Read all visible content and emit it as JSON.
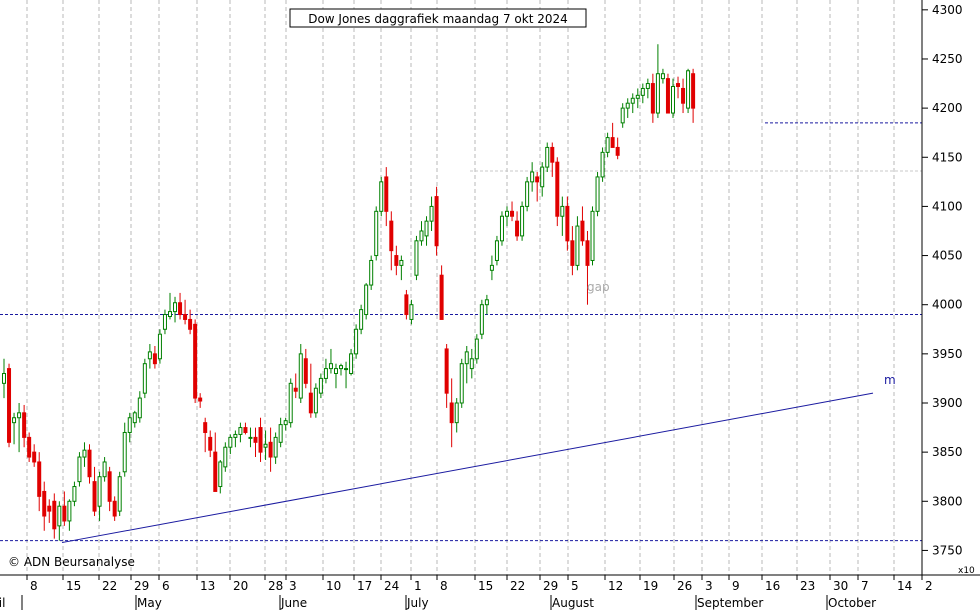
{
  "chart_data": {
    "type": "candlestick",
    "title": "Dow Jones daggrafiek maandag 7 okt 2024",
    "copyright": "© ADN Beursanalyse",
    "scale_note": "x10",
    "ylim": [
      3725,
      4310
    ],
    "y_ticks": [
      3750,
      3800,
      3850,
      3900,
      3950,
      4000,
      4050,
      4100,
      4150,
      4200,
      4250,
      4300
    ],
    "date_ticks": [
      "8",
      "15",
      "22",
      "29",
      "6",
      "13",
      "20",
      "28",
      "3",
      "10",
      "17",
      "24",
      "1",
      "8",
      "15",
      "22",
      "29",
      "5",
      "12",
      "19",
      "26",
      "3",
      "9",
      "16",
      "23",
      "30",
      "7",
      "14",
      "2"
    ],
    "month_labels": [
      "April",
      "May",
      "June",
      "July",
      "August",
      "September",
      "October"
    ],
    "horizontal_levels": [
      3990,
      3760,
      4185,
      4136
    ],
    "trendline_label": "m",
    "gap_label": "gap",
    "colors": {
      "up": "#008000",
      "down": "#e00000",
      "trend": "#1a1aa0",
      "level": "#1a1aa0",
      "grid": "#b8b8b8"
    },
    "ohlc": [
      [
        3920,
        3945,
        3905,
        3930
      ],
      [
        3935,
        3940,
        3855,
        3860
      ],
      [
        3880,
        3890,
        3858,
        3885
      ],
      [
        3885,
        3900,
        3850,
        3890
      ],
      [
        3890,
        3898,
        3855,
        3865
      ],
      [
        3865,
        3870,
        3840,
        3845
      ],
      [
        3850,
        3858,
        3835,
        3840
      ],
      [
        3840,
        3850,
        3790,
        3805
      ],
      [
        3810,
        3820,
        3770,
        3785
      ],
      [
        3795,
        3802,
        3778,
        3790
      ],
      [
        3800,
        3808,
        3762,
        3772
      ],
      [
        3775,
        3800,
        3760,
        3795
      ],
      [
        3795,
        3810,
        3775,
        3780
      ],
      [
        3780,
        3802,
        3770,
        3800
      ],
      [
        3800,
        3820,
        3795,
        3815
      ],
      [
        3820,
        3850,
        3815,
        3845
      ],
      [
        3845,
        3860,
        3835,
        3852
      ],
      [
        3852,
        3858,
        3818,
        3825
      ],
      [
        3820,
        3835,
        3785,
        3790
      ],
      [
        3795,
        3830,
        3780,
        3825
      ],
      [
        3825,
        3845,
        3820,
        3840
      ],
      [
        3830,
        3835,
        3790,
        3800
      ],
      [
        3800,
        3805,
        3780,
        3785
      ],
      [
        3790,
        3830,
        3785,
        3825
      ],
      [
        3830,
        3880,
        3825,
        3870
      ],
      [
        3870,
        3890,
        3860,
        3885
      ],
      [
        3880,
        3892,
        3875,
        3890
      ],
      [
        3885,
        3912,
        3880,
        3905
      ],
      [
        3910,
        3945,
        3905,
        3940
      ],
      [
        3945,
        3960,
        3935,
        3952
      ],
      [
        3950,
        3958,
        3935,
        3940
      ],
      [
        3945,
        3975,
        3940,
        3970
      ],
      [
        3975,
        3995,
        3970,
        3990
      ],
      [
        3988,
        4012,
        3985,
        3993
      ],
      [
        3993,
        4008,
        3982,
        4002
      ],
      [
        4002,
        4012,
        3985,
        3990
      ],
      [
        3990,
        4005,
        3980,
        3985
      ],
      [
        3985,
        3995,
        3970,
        3975
      ],
      [
        3980,
        3985,
        3900,
        3905
      ],
      [
        3905,
        3910,
        3895,
        3902
      ],
      [
        3880,
        3885,
        3850,
        3870
      ],
      [
        3865,
        3872,
        3845,
        3852
      ],
      [
        3850,
        3870,
        3810,
        3810
      ],
      [
        3815,
        3842,
        3808,
        3840
      ],
      [
        3835,
        3860,
        3830,
        3855
      ],
      [
        3855,
        3868,
        3848,
        3865
      ],
      [
        3865,
        3872,
        3855,
        3868
      ],
      [
        3868,
        3880,
        3860,
        3875
      ],
      [
        3875,
        3880,
        3868,
        3870
      ],
      [
        3865,
        3875,
        3855,
        3865
      ],
      [
        3865,
        3875,
        3845,
        3860
      ],
      [
        3875,
        3885,
        3840,
        3850
      ],
      [
        3855,
        3872,
        3842,
        3858
      ],
      [
        3860,
        3875,
        3830,
        3845
      ],
      [
        3845,
        3870,
        3838,
        3865
      ],
      [
        3860,
        3885,
        3855,
        3878
      ],
      [
        3878,
        3885,
        3872,
        3882
      ],
      [
        3880,
        3925,
        3875,
        3920
      ],
      [
        3915,
        3930,
        3905,
        3912
      ],
      [
        3905,
        3960,
        3900,
        3950
      ],
      [
        3945,
        3955,
        3915,
        3920
      ],
      [
        3910,
        3940,
        3885,
        3890
      ],
      [
        3890,
        3920,
        3885,
        3915
      ],
      [
        3910,
        3930,
        3905,
        3925
      ],
      [
        3925,
        3945,
        3920,
        3935
      ],
      [
        3935,
        3955,
        3930,
        3940
      ],
      [
        3930,
        3940,
        3915,
        3935
      ],
      [
        3935,
        3940,
        3928,
        3938
      ],
      [
        3935,
        3942,
        3915,
        3935
      ],
      [
        3930,
        3955,
        3928,
        3950
      ],
      [
        3950,
        3980,
        3945,
        3975
      ],
      [
        3975,
        4000,
        3970,
        3995
      ],
      [
        3990,
        4022,
        3985,
        4020
      ],
      [
        4020,
        4050,
        4015,
        4045
      ],
      [
        4050,
        4100,
        4045,
        4095
      ],
      [
        4095,
        4130,
        4090,
        4125
      ],
      [
        4130,
        4140,
        4080,
        4095
      ],
      [
        4085,
        4095,
        4035,
        4055
      ],
      [
        4050,
        4060,
        4030,
        4040
      ],
      [
        4040,
        4050,
        4025,
        4045
      ],
      [
        4010,
        4015,
        3985,
        3990
      ],
      [
        3985,
        4005,
        3980,
        4000
      ],
      [
        4030,
        4070,
        4025,
        4065
      ],
      [
        4065,
        4085,
        4060,
        4075
      ],
      [
        4070,
        4090,
        4060,
        4085
      ],
      [
        4085,
        4110,
        4075,
        4100
      ],
      [
        4110,
        4120,
        4050,
        4060
      ],
      [
        4030,
        4040,
        3985,
        3985
      ],
      [
        3955,
        3960,
        3895,
        3910
      ],
      [
        3900,
        3925,
        3855,
        3880
      ],
      [
        3880,
        3905,
        3870,
        3900
      ],
      [
        3900,
        3945,
        3895,
        3940
      ],
      [
        3940,
        3958,
        3920,
        3952
      ],
      [
        3935,
        3955,
        3925,
        3945
      ],
      [
        3945,
        3970,
        3940,
        3965
      ],
      [
        3970,
        4005,
        3965,
        4000
      ],
      [
        4000,
        4010,
        3990,
        4005
      ],
      [
        4035,
        4050,
        4025,
        4040
      ],
      [
        4045,
        4070,
        4040,
        4065
      ],
      [
        4065,
        4095,
        4060,
        4090
      ],
      [
        4090,
        4100,
        4080,
        4095
      ],
      [
        4095,
        4105,
        4085,
        4090
      ],
      [
        4085,
        4095,
        4065,
        4070
      ],
      [
        4070,
        4105,
        4065,
        4100
      ],
      [
        4100,
        4130,
        4095,
        4125
      ],
      [
        4125,
        4145,
        4115,
        4135
      ],
      [
        4130,
        4135,
        4105,
        4125
      ],
      [
        4120,
        4145,
        4110,
        4140
      ],
      [
        4140,
        4165,
        4135,
        4160
      ],
      [
        4160,
        4165,
        4130,
        4145
      ],
      [
        4145,
        4150,
        4080,
        4090
      ],
      [
        4090,
        4110,
        4070,
        4100
      ],
      [
        4100,
        4110,
        4055,
        4065
      ],
      [
        4065,
        4080,
        4030,
        4040
      ],
      [
        4040,
        4090,
        4035,
        4080
      ],
      [
        4085,
        4100,
        4060,
        4065
      ],
      [
        4065,
        4075,
        4000,
        4040
      ],
      [
        4045,
        4100,
        4040,
        4095
      ],
      [
        4095,
        4135,
        4090,
        4130
      ],
      [
        4130,
        4160,
        4125,
        4155
      ],
      [
        4155,
        4175,
        4150,
        4170
      ],
      [
        4170,
        4185,
        4160,
        4160
      ],
      [
        4160,
        4170,
        4148,
        4152
      ],
      [
        4185,
        4205,
        4180,
        4200
      ],
      [
        4200,
        4210,
        4190,
        4205
      ],
      [
        4205,
        4215,
        4195,
        4210
      ],
      [
        4210,
        4220,
        4200,
        4213
      ],
      [
        4213,
        4225,
        4205,
        4220
      ],
      [
        4220,
        4230,
        4210,
        4225
      ],
      [
        4225,
        4235,
        4185,
        4195
      ],
      [
        4195,
        4265,
        4190,
        4235
      ],
      [
        4230,
        4240,
        4225,
        4235
      ],
      [
        4230,
        4235,
        4195,
        4195
      ],
      [
        4195,
        4230,
        4190,
        4222
      ],
      [
        4225,
        4232,
        4210,
        4222
      ],
      [
        4220,
        4230,
        4195,
        4205
      ],
      [
        4200,
        4240,
        4195,
        4238
      ],
      [
        4235,
        4240,
        4185,
        4200
      ]
    ]
  }
}
